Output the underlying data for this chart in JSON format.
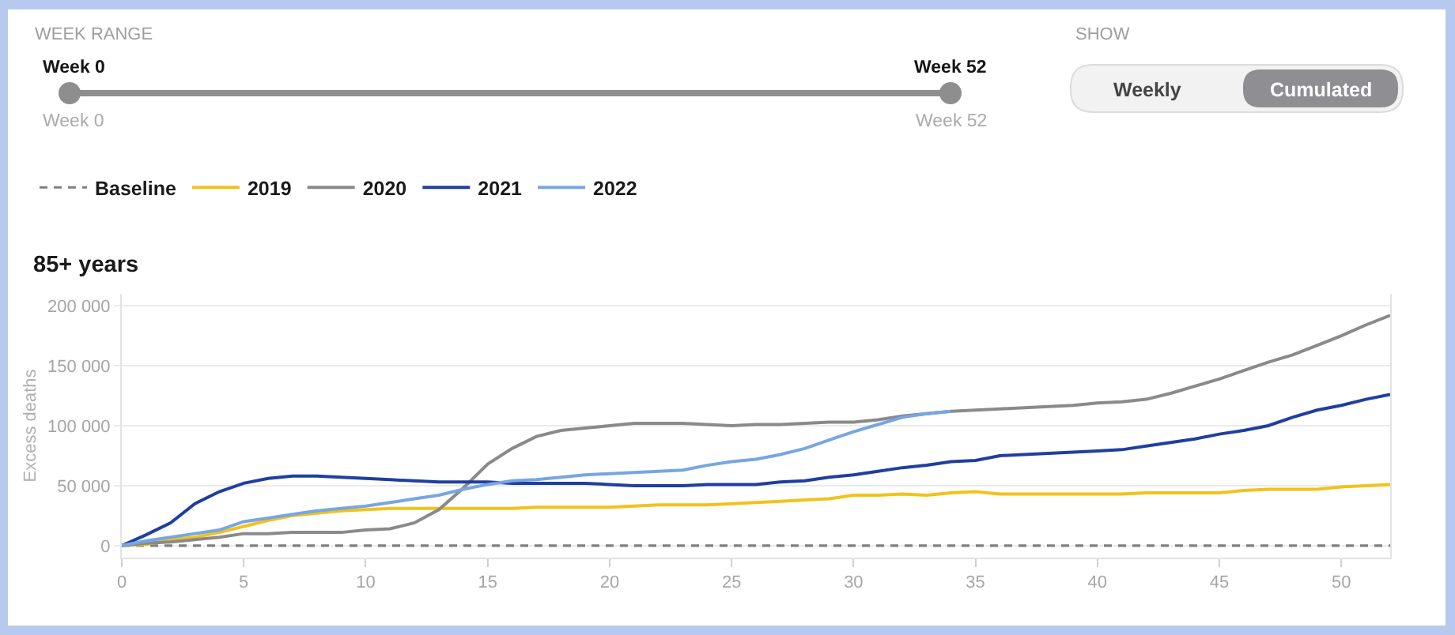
{
  "chart_data": {
    "type": "line",
    "title": "85+ years",
    "ylabel": "Excess deaths",
    "x": [
      0,
      1,
      2,
      3,
      4,
      5,
      6,
      7,
      8,
      9,
      10,
      11,
      12,
      13,
      14,
      15,
      16,
      17,
      18,
      19,
      20,
      21,
      22,
      23,
      24,
      25,
      26,
      27,
      28,
      29,
      30,
      31,
      32,
      33,
      34,
      35,
      36,
      37,
      38,
      39,
      40,
      41,
      42,
      43,
      44,
      45,
      46,
      47,
      48,
      49,
      50,
      51,
      52
    ],
    "xlim": [
      0,
      52
    ],
    "xticks": [
      0,
      5,
      10,
      15,
      20,
      25,
      30,
      35,
      40,
      45,
      50
    ],
    "ylim": [
      -10000,
      210000
    ],
    "yticks": [
      0,
      {
        "value": 50000,
        "label": "50 000"
      },
      {
        "value": 100000,
        "label": "100 000"
      },
      {
        "value": 150000,
        "label": "150 000"
      },
      {
        "value": 200000,
        "label": "200 000"
      }
    ],
    "grid": "y",
    "legend": "top left",
    "series": [
      {
        "name": "Baseline",
        "color": "#7f7f7f",
        "line_style": "dashed",
        "x": [
          0,
          52
        ],
        "values": [
          0,
          0
        ]
      },
      {
        "name": "2019",
        "color": "#f2c21b",
        "values": [
          0,
          1000,
          5000,
          7000,
          11000,
          16000,
          21000,
          25000,
          27000,
          29000,
          30000,
          31000,
          31000,
          31000,
          31000,
          31000,
          31000,
          32000,
          32000,
          32000,
          32000,
          33000,
          34000,
          34000,
          34000,
          35000,
          36000,
          37000,
          38000,
          39000,
          42000,
          42000,
          43000,
          42000,
          44000,
          45000,
          43000,
          43000,
          43000,
          43000,
          43000,
          43000,
          44000,
          44000,
          44000,
          44000,
          46000,
          47000,
          47000,
          47000,
          49000,
          50000,
          51000
        ]
      },
      {
        "name": "2020",
        "color": "#8a8a8a",
        "values": [
          0,
          2000,
          3000,
          5000,
          7000,
          10000,
          10000,
          11000,
          11000,
          11000,
          13000,
          14000,
          19000,
          30000,
          48000,
          68000,
          81000,
          91000,
          96000,
          98000,
          100000,
          102000,
          102000,
          102000,
          101000,
          100000,
          101000,
          101000,
          102000,
          103000,
          103000,
          105000,
          108000,
          110000,
          112000,
          113000,
          114000,
          115000,
          116000,
          117000,
          119000,
          120000,
          122000,
          127000,
          133000,
          139000,
          146000,
          153000,
          159000,
          167000,
          175000,
          184000,
          192000
        ]
      },
      {
        "name": "2021",
        "color": "#1f3fa0",
        "values": [
          0,
          9000,
          19000,
          35000,
          45000,
          52000,
          56000,
          58000,
          58000,
          57000,
          56000,
          55000,
          54000,
          53000,
          53000,
          53000,
          52000,
          52000,
          52000,
          52000,
          51000,
          50000,
          50000,
          50000,
          51000,
          51000,
          51000,
          53000,
          54000,
          57000,
          59000,
          62000,
          65000,
          67000,
          70000,
          71000,
          75000,
          76000,
          77000,
          78000,
          79000,
          80000,
          83000,
          86000,
          89000,
          93000,
          96000,
          100000,
          107000,
          113000,
          117000,
          122000,
          126000
        ]
      },
      {
        "name": "2022",
        "color": "#77a6e2",
        "values": [
          0,
          4000,
          7000,
          10000,
          13000,
          20000,
          23000,
          26000,
          29000,
          31000,
          33000,
          36000,
          39000,
          42000,
          47000,
          51000,
          54000,
          55000,
          57000,
          59000,
          60000,
          61000,
          62000,
          63000,
          67000,
          70000,
          72000,
          76000,
          81000,
          88000,
          95000,
          101000,
          107000,
          110000,
          112000,
          null,
          null,
          null,
          null,
          null,
          null,
          null,
          null,
          null,
          null,
          null,
          null,
          null,
          null,
          null,
          null,
          null,
          null
        ]
      }
    ],
    "annotations": [
      "WEEK RANGE",
      "Week 0",
      "Week 52",
      "Week 0",
      "Week 52",
      "SHOW",
      "Weekly",
      "Cumulated"
    ]
  }
}
